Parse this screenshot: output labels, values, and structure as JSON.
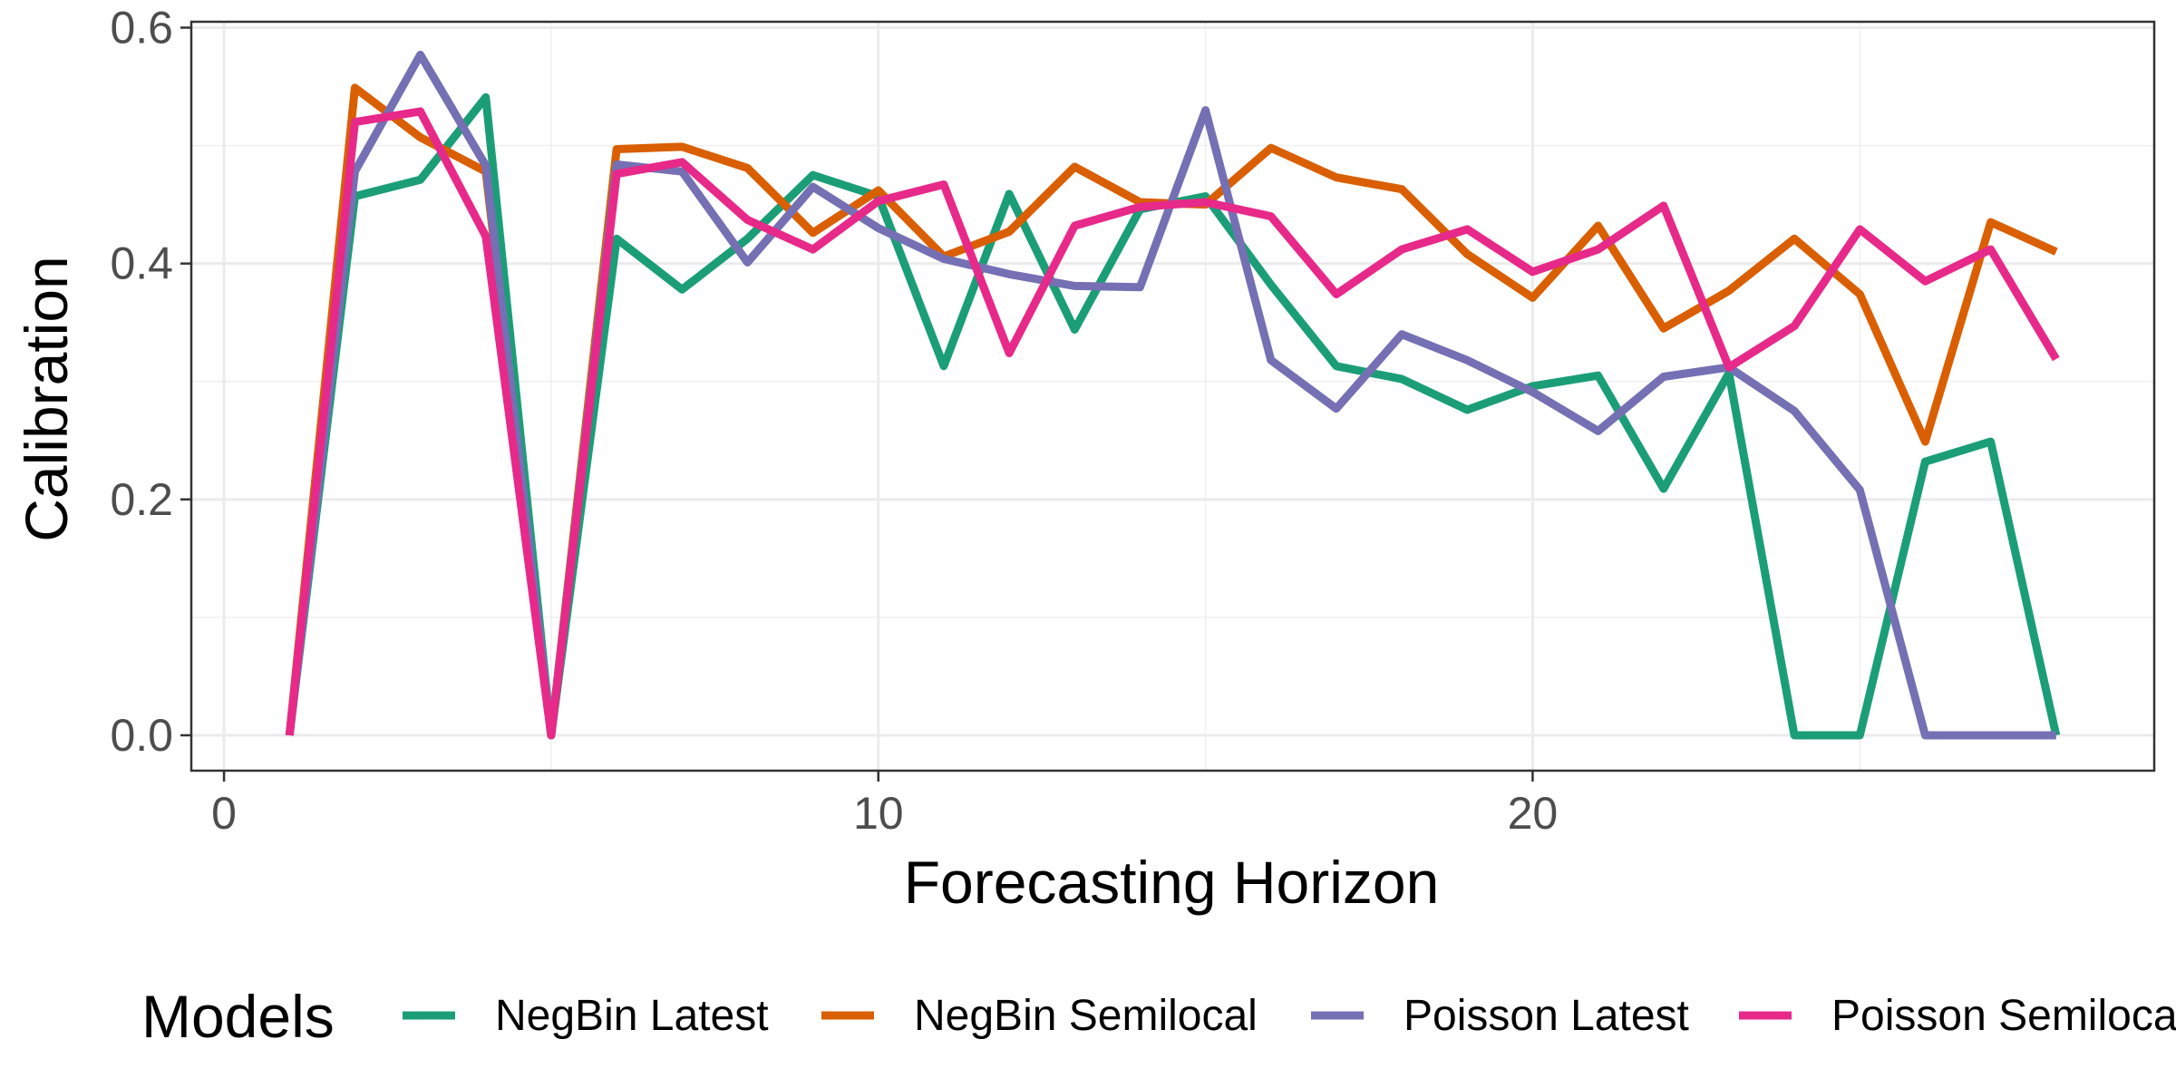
{
  "chart_data": {
    "type": "line",
    "title": "",
    "xlabel": "Forecasting Horizon",
    "ylabel": "Calibration",
    "xlim": [
      -0.5,
      29.5
    ],
    "ylim": [
      -0.03,
      0.605
    ],
    "x_ticks": [
      0,
      10,
      20
    ],
    "x_tick_labels": [
      "0",
      "10",
      "20"
    ],
    "y_ticks": [
      0.0,
      0.2,
      0.4,
      0.6
    ],
    "y_tick_labels": [
      "0.0",
      "0.2",
      "0.4",
      "0.6"
    ],
    "grid": true,
    "legend": {
      "title": "Models",
      "position": "bottom"
    },
    "x": [
      1,
      2,
      3,
      4,
      5,
      6,
      7,
      8,
      9,
      10,
      11,
      12,
      13,
      14,
      15,
      16,
      17,
      18,
      19,
      20,
      21,
      22,
      23,
      24,
      25,
      26,
      27,
      28
    ],
    "series": [
      {
        "name": "NegBin Latest",
        "color": "#1b9e77",
        "values": [
          0.0,
          0.457,
          0.471,
          0.541,
          0.0,
          0.421,
          0.378,
          0.421,
          0.475,
          0.457,
          0.313,
          0.459,
          0.344,
          0.446,
          0.457,
          0.382,
          0.313,
          0.302,
          0.276,
          0.296,
          0.305,
          0.209,
          0.307,
          0.0,
          0.0,
          0.232,
          0.249,
          0.0
        ]
      },
      {
        "name": "NegBin Semilocal",
        "color": "#d95f02",
        "values": [
          0.0,
          0.549,
          0.507,
          0.478,
          0.0,
          0.497,
          0.499,
          0.481,
          0.426,
          0.462,
          0.406,
          0.427,
          0.482,
          0.452,
          0.45,
          0.498,
          0.473,
          0.463,
          0.408,
          0.371,
          0.432,
          0.345,
          0.377,
          0.421,
          0.374,
          0.249,
          0.435,
          0.41
        ]
      },
      {
        "name": "Poisson Latest",
        "color": "#7570b3",
        "values": [
          0.0,
          0.478,
          0.577,
          0.483,
          0.0,
          0.484,
          0.478,
          0.401,
          0.465,
          0.43,
          0.404,
          0.391,
          0.381,
          0.38,
          0.53,
          0.318,
          0.277,
          0.34,
          0.318,
          0.291,
          0.258,
          0.304,
          0.312,
          0.275,
          0.208,
          0.0,
          0.0,
          0.0
        ]
      },
      {
        "name": "Poisson Semilocal",
        "color": "#e7298a",
        "values": [
          0.0,
          0.52,
          0.529,
          0.423,
          0.0,
          0.476,
          0.486,
          0.437,
          0.412,
          0.453,
          0.467,
          0.324,
          0.432,
          0.448,
          0.452,
          0.44,
          0.374,
          0.412,
          0.429,
          0.393,
          0.412,
          0.449,
          0.312,
          0.347,
          0.429,
          0.385,
          0.412,
          0.319
        ]
      }
    ]
  }
}
